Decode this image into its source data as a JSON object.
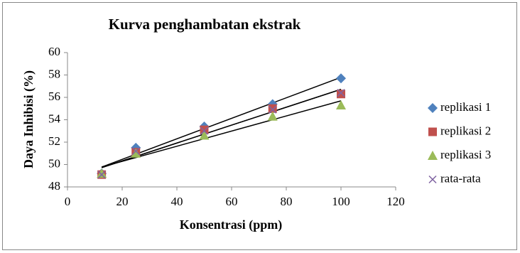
{
  "chart_data": {
    "type": "scatter",
    "title": "Kurva penghambatan ekstrak",
    "x_label": "Konsentrasi (ppm)",
    "y_label": "Daya Inhibisi (%)",
    "x": [
      12.5,
      25,
      50,
      75,
      100
    ],
    "series": [
      {
        "name": "replikasi 1",
        "color": "#4f81bd",
        "marker": "diamond",
        "values": [
          49.2,
          51.5,
          53.4,
          55.4,
          57.7
        ]
      },
      {
        "name": "replikasi 2",
        "color": "#c0504d",
        "marker": "square",
        "values": [
          49.1,
          51.1,
          53.1,
          55.0,
          56.3
        ]
      },
      {
        "name": "replikasi 3",
        "color": "#9bbb59",
        "marker": "triangle",
        "values": [
          49.2,
          51.0,
          52.6,
          54.3,
          55.3
        ]
      },
      {
        "name": "rata-rata",
        "color": "#8064a2",
        "marker": "cross",
        "values": [
          49.1,
          51.2,
          53.0,
          54.9,
          56.4
        ]
      }
    ],
    "trendline": true,
    "trendline_color": "#000000",
    "xlim": [
      0,
      120
    ],
    "xticks": [
      0,
      20,
      40,
      60,
      80,
      100,
      120
    ],
    "ylim": [
      48,
      60
    ],
    "yticks": [
      48,
      50,
      52,
      54,
      56,
      58,
      60
    ],
    "legend": "right"
  }
}
